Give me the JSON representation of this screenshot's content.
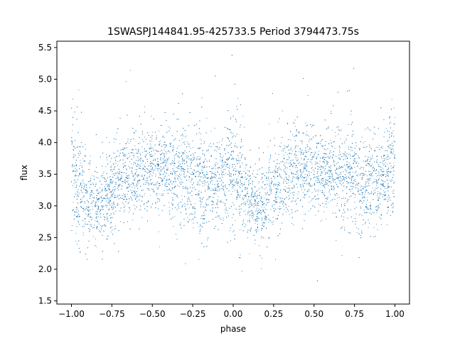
{
  "chart_data": {
    "type": "scatter",
    "title": "1SWASPJ144841.95-425733.5 Period 3794473.75s",
    "xlabel": "phase",
    "ylabel": "flux",
    "xlim": [
      -1.09,
      1.09
    ],
    "ylim": [
      1.45,
      5.6
    ],
    "xticks": [
      -1.0,
      -0.75,
      -0.5,
      -0.25,
      0.0,
      0.25,
      0.5,
      0.75,
      1.0
    ],
    "xtick_labels": [
      "−1.00",
      "−0.75",
      "−0.50",
      "−0.25",
      "0.00",
      "0.25",
      "0.50",
      "0.75",
      "1.00"
    ],
    "yticks": [
      1.5,
      2.0,
      2.5,
      3.0,
      3.5,
      4.0,
      4.5,
      5.0,
      5.5
    ],
    "ytick_labels": [
      "1.5",
      "2.0",
      "2.5",
      "3.0",
      "3.5",
      "4.0",
      "4.5",
      "5.0",
      "5.5"
    ],
    "grid": false,
    "series": [
      {
        "color": "#1f77b4",
        "marker_size": "tiny",
        "folded_period_in_phase": 1.0,
        "phase_range": [
          -1.0,
          1.0
        ],
        "profile_phase": [
          0.0,
          0.05,
          0.1,
          0.15,
          0.2,
          0.25,
          0.3,
          0.35,
          0.4,
          0.45,
          0.5,
          0.55,
          0.6,
          0.65,
          0.7,
          0.75,
          0.8,
          0.85,
          0.9,
          0.95,
          1.0
        ],
        "profile_flux_median": [
          3.7,
          3.3,
          3.05,
          3.0,
          3.05,
          3.3,
          3.4,
          3.5,
          3.55,
          3.6,
          3.6,
          3.55,
          3.6,
          3.5,
          3.5,
          3.45,
          3.4,
          3.3,
          3.35,
          3.5,
          3.7
        ],
        "profile_flux_spread": [
          0.55,
          0.45,
          0.3,
          0.3,
          0.3,
          0.35,
          0.35,
          0.35,
          0.35,
          0.3,
          0.3,
          0.3,
          0.35,
          0.4,
          0.4,
          0.4,
          0.4,
          0.35,
          0.35,
          0.35,
          0.55
        ],
        "flux_min": 1.6,
        "flux_max": 5.45
      }
    ]
  }
}
